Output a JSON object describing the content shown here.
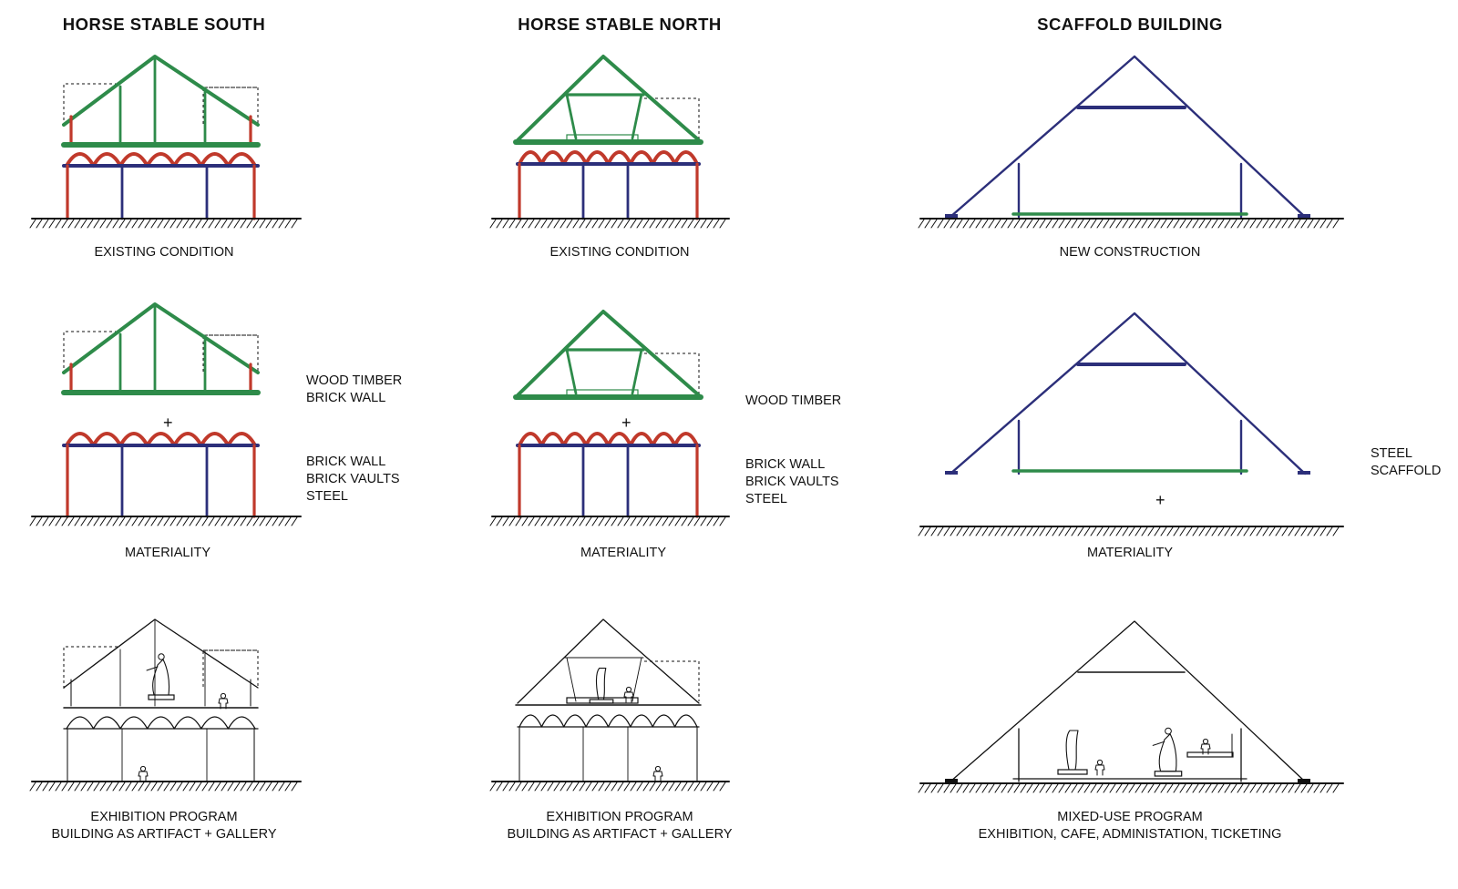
{
  "columns": [
    {
      "title": "HORSE STABLE SOUTH",
      "row1_caption": "EXISTING CONDITION",
      "row2_upper_materials": [
        "WOOD TIMBER",
        "BRICK WALL"
      ],
      "row2_lower_materials": [
        "BRICK WALL",
        "BRICK VAULTS",
        "STEEL"
      ],
      "row2_caption": "MATERIALITY",
      "row3_caption": [
        "EXHIBITION PROGRAM",
        "BUILDING AS ARTIFACT + GALLERY"
      ]
    },
    {
      "title": "HORSE STABLE NORTH",
      "row1_caption": "EXISTING CONDITION",
      "row2_upper_materials": [
        "WOOD TIMBER"
      ],
      "row2_lower_materials": [
        "BRICK WALL",
        "BRICK VAULTS",
        "STEEL"
      ],
      "row2_caption": "MATERIALITY",
      "row3_caption": [
        "EXHIBITION PROGRAM",
        "BUILDING AS ARTIFACT + GALLERY"
      ]
    },
    {
      "title": "SCAFFOLD BUILDING",
      "row1_caption": "NEW CONSTRUCTION",
      "row2_upper_materials": [
        "STEEL",
        "SCAFFOLD"
      ],
      "row2_caption": "MATERIALITY",
      "row3_caption": [
        "MIXED-USE PROGRAM",
        "EXHIBITION, CAFE, ADMINISTATION, TICKETING"
      ]
    }
  ],
  "plus_sign": "+",
  "colors": {
    "wood_timber": "#2e8b4a",
    "brick": "#c0392b",
    "steel": "#2c2f7a",
    "line": "#111111"
  }
}
